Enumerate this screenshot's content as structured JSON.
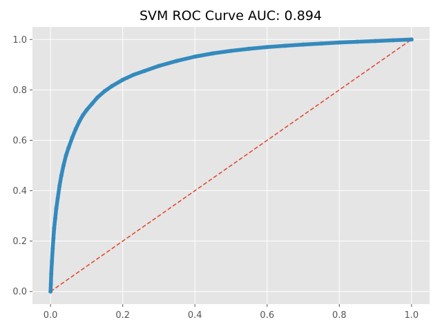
{
  "chart_data": {
    "type": "line",
    "title": "SVM ROC Curve  AUC: 0.894",
    "xlabel": "",
    "ylabel": "",
    "xlim": [
      -0.05,
      1.05
    ],
    "ylim": [
      -0.05,
      1.05
    ],
    "grid": true,
    "x_ticks": [
      "0.0",
      "0.2",
      "0.4",
      "0.6",
      "0.8",
      "1.0"
    ],
    "y_ticks": [
      "0.0",
      "0.2",
      "0.4",
      "0.6",
      "0.8",
      "1.0"
    ],
    "series": [
      {
        "color": "#348abd",
        "style": "solid-markers",
        "x": [
          0.0,
          0.001,
          0.002,
          0.004,
          0.006,
          0.008,
          0.01,
          0.013,
          0.016,
          0.02,
          0.025,
          0.03,
          0.036,
          0.043,
          0.05,
          0.06,
          0.07,
          0.08,
          0.09,
          0.1,
          0.115,
          0.13,
          0.15,
          0.17,
          0.2,
          0.23,
          0.26,
          0.3,
          0.35,
          0.4,
          0.45,
          0.5,
          0.55,
          0.6,
          0.65,
          0.7,
          0.75,
          0.8,
          0.85,
          0.9,
          0.95,
          1.0
        ],
        "y": [
          0.0,
          0.03,
          0.07,
          0.12,
          0.17,
          0.21,
          0.25,
          0.29,
          0.33,
          0.37,
          0.42,
          0.46,
          0.5,
          0.54,
          0.57,
          0.61,
          0.645,
          0.675,
          0.7,
          0.72,
          0.745,
          0.77,
          0.795,
          0.815,
          0.84,
          0.86,
          0.875,
          0.895,
          0.915,
          0.932,
          0.945,
          0.955,
          0.963,
          0.97,
          0.975,
          0.98,
          0.984,
          0.988,
          0.991,
          0.994,
          0.997,
          1.0
        ]
      },
      {
        "color": "#e24a33",
        "style": "dashed",
        "x": [
          0.0,
          1.0
        ],
        "y": [
          0.0,
          1.0
        ]
      }
    ]
  }
}
